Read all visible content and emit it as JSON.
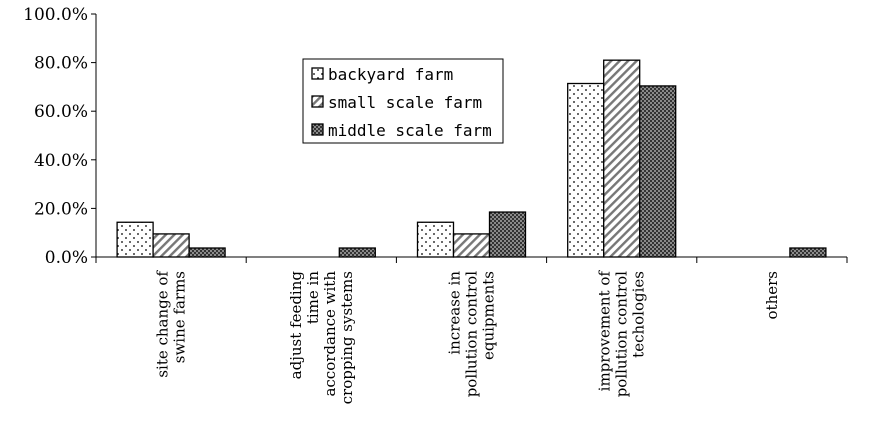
{
  "chart_data": {
    "type": "bar",
    "categories": [
      [
        "site change of",
        "swine farms"
      ],
      [
        "adjust feeding",
        "time in",
        "accordance with",
        "cropping systems"
      ],
      [
        "increase in",
        "pollution control",
        "equipments"
      ],
      [
        "improvement of",
        "pollution control",
        "techologies"
      ],
      [
        "others"
      ]
    ],
    "series": [
      {
        "name": "backyard farm",
        "values": [
          14.3,
          0,
          14.3,
          71.4,
          0
        ],
        "pattern": "dots",
        "fill": "#ffffff"
      },
      {
        "name": "small scale farm",
        "values": [
          9.5,
          0,
          9.5,
          81.0,
          0
        ],
        "pattern": "diag",
        "fill": "#ffffff"
      },
      {
        "name": "middle scale farm",
        "values": [
          3.7,
          3.7,
          18.5,
          70.4,
          3.7
        ],
        "pattern": "dense",
        "fill": "#555555"
      }
    ],
    "yticks": [
      "0.0%",
      "20.0%",
      "40.0%",
      "60.0%",
      "80.0%",
      "100.0%"
    ],
    "ytick_values": [
      0,
      20,
      40,
      60,
      80,
      100
    ],
    "ylim": [
      0,
      100
    ],
    "legend_position": "top-center",
    "grid": false
  }
}
